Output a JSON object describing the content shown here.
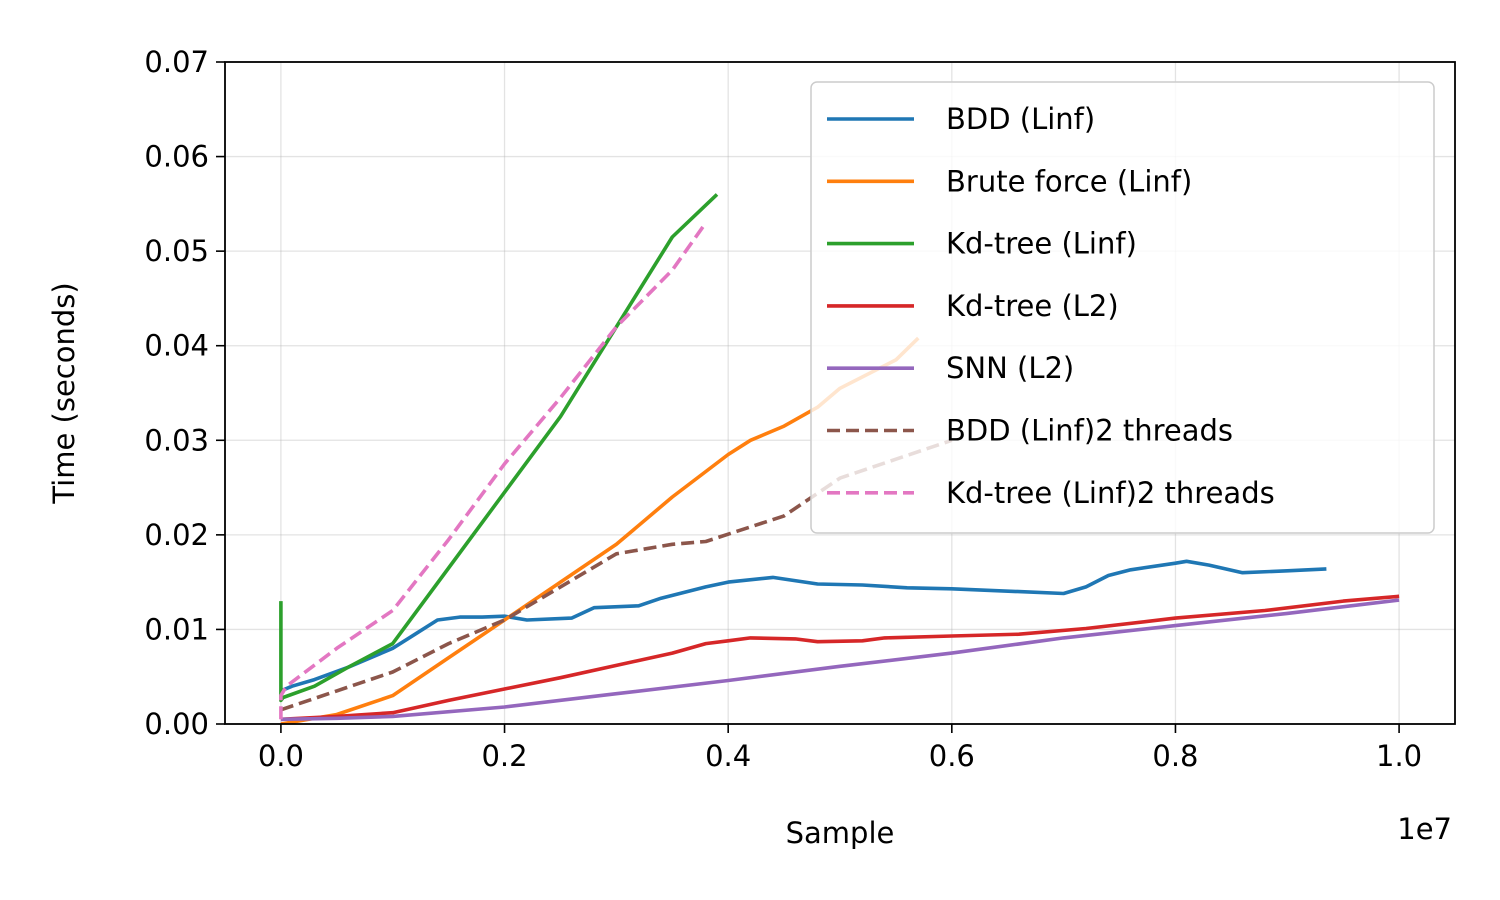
{
  "chart_data": {
    "type": "line",
    "title": "",
    "xlabel": "Sample",
    "ylabel": "Time (seconds)",
    "x_offset_text": "1e7",
    "xlim": [
      -0.05,
      1.05
    ],
    "ylim": [
      0,
      0.07
    ],
    "x_ticks": [
      0.0,
      0.2,
      0.4,
      0.6,
      0.8,
      1.0
    ],
    "x_tick_labels": [
      "0.0",
      "0.2",
      "0.4",
      "0.6",
      "0.8",
      "1.0"
    ],
    "y_ticks": [
      0.0,
      0.01,
      0.02,
      0.03,
      0.04,
      0.05,
      0.06,
      0.07
    ],
    "y_tick_labels": [
      "0.00",
      "0.01",
      "0.02",
      "0.03",
      "0.04",
      "0.05",
      "0.06",
      "0.07"
    ],
    "grid": true,
    "legend_position": "top-right",
    "series": [
      {
        "name": "BDD (Linf)",
        "color": "#1f77b4",
        "dash": "solid",
        "x": [
          0.0,
          0.01,
          0.03,
          0.06,
          0.08,
          0.1,
          0.12,
          0.14,
          0.16,
          0.18,
          0.2,
          0.22,
          0.26,
          0.28,
          0.32,
          0.34,
          0.38,
          0.4,
          0.44,
          0.48,
          0.52,
          0.56,
          0.6,
          0.66,
          0.7,
          0.72,
          0.74,
          0.76,
          0.8,
          0.81,
          0.83,
          0.86,
          0.9,
          0.935
        ],
        "y": [
          0.0035,
          0.004,
          0.0047,
          0.006,
          0.007,
          0.008,
          0.0095,
          0.011,
          0.0113,
          0.0113,
          0.0114,
          0.011,
          0.0112,
          0.0123,
          0.0125,
          0.0133,
          0.0145,
          0.015,
          0.0155,
          0.0148,
          0.0147,
          0.0144,
          0.0143,
          0.014,
          0.0138,
          0.0145,
          0.0157,
          0.0163,
          0.017,
          0.0172,
          0.0168,
          0.016,
          0.0162,
          0.0164
        ]
      },
      {
        "name": "Brute force (Linf)",
        "color": "#ff7f0e",
        "dash": "solid",
        "x": [
          0.0,
          0.05,
          0.1,
          0.15,
          0.2,
          0.25,
          0.3,
          0.35,
          0.4,
          0.42,
          0.45,
          0.48,
          0.5,
          0.55,
          0.57
        ],
        "y": [
          0.0,
          0.001,
          0.003,
          0.007,
          0.011,
          0.015,
          0.019,
          0.024,
          0.0285,
          0.03,
          0.0315,
          0.0335,
          0.0355,
          0.0385,
          0.0408
        ]
      },
      {
        "name": "Kd-tree (Linf)",
        "color": "#2ca02c",
        "dash": "solid",
        "x": [
          0.0,
          0.0,
          0.002,
          0.03,
          0.06,
          0.1,
          0.15,
          0.2,
          0.25,
          0.3,
          0.35,
          0.39
        ],
        "y": [
          0.013,
          0.0025,
          0.0028,
          0.004,
          0.006,
          0.0085,
          0.0165,
          0.0245,
          0.0325,
          0.042,
          0.0515,
          0.056
        ]
      },
      {
        "name": "Kd-tree (L2)",
        "color": "#d62728",
        "dash": "solid",
        "x": [
          0.0,
          0.05,
          0.1,
          0.15,
          0.2,
          0.25,
          0.3,
          0.35,
          0.38,
          0.4,
          0.42,
          0.46,
          0.48,
          0.52,
          0.54,
          0.6,
          0.66,
          0.72,
          0.8,
          0.88,
          0.95,
          1.0
        ],
        "y": [
          0.0005,
          0.0008,
          0.0012,
          0.0025,
          0.0037,
          0.0049,
          0.0062,
          0.0075,
          0.0085,
          0.0088,
          0.0091,
          0.009,
          0.0087,
          0.0088,
          0.0091,
          0.0093,
          0.0095,
          0.0101,
          0.0112,
          0.012,
          0.013,
          0.0135
        ]
      },
      {
        "name": "SNN (L2)",
        "color": "#9467bd",
        "dash": "solid",
        "x": [
          0.0,
          0.05,
          0.1,
          0.2,
          0.3,
          0.4,
          0.5,
          0.6,
          0.7,
          0.8,
          0.9,
          1.0
        ],
        "y": [
          0.0005,
          0.0006,
          0.0008,
          0.0018,
          0.0032,
          0.0046,
          0.0061,
          0.0075,
          0.0091,
          0.0104,
          0.0117,
          0.0131
        ]
      },
      {
        "name": "BDD (Linf)2 threads",
        "color": "#8c564b",
        "dash": "dashed",
        "x": [
          0.0,
          0.05,
          0.1,
          0.15,
          0.2,
          0.25,
          0.3,
          0.35,
          0.38,
          0.45,
          0.5,
          0.55,
          0.6
        ],
        "y": [
          0.0015,
          0.0035,
          0.0055,
          0.0085,
          0.011,
          0.0145,
          0.018,
          0.019,
          0.0193,
          0.022,
          0.026,
          0.028,
          0.03
        ]
      },
      {
        "name": "Kd-tree (Linf)2 threads",
        "color": "#e377c2",
        "dash": "dashed",
        "x": [
          0.0,
          0.0,
          0.005,
          0.05,
          0.1,
          0.15,
          0.2,
          0.25,
          0.3,
          0.35,
          0.38
        ],
        "y": [
          0.0005,
          0.003,
          0.004,
          0.008,
          0.012,
          0.0195,
          0.0275,
          0.0345,
          0.042,
          0.048,
          0.053
        ]
      }
    ]
  }
}
